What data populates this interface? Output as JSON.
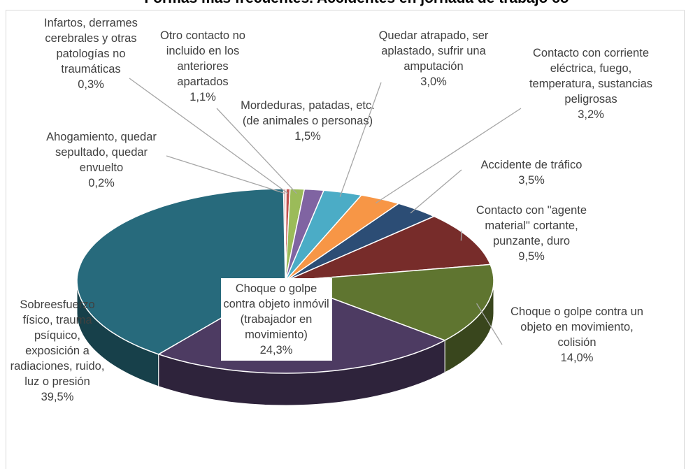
{
  "chart_data": {
    "type": "pie3d",
    "title": "Formas más frecuentes. Accidentes en jornada de trabajo co",
    "categories": [
      "Ahogamiento, quedar sepultado, quedar envuelto",
      "Infartos, derrames cerebrales y otras patologías no traumáticas",
      "Otro contacto no incluido en los anteriores apartados",
      "Mordeduras, patadas, etc. (de animales o personas)",
      "Quedar atrapado, ser aplastado, sufrir una amputación",
      "Contacto con corriente eléctrica, fuego, temperatura, sustancias peligrosas",
      "Accidente de tráfico",
      "Contacto con \"agente material\" cortante, punzante, duro",
      "Choque o golpe contra un objeto en movimiento, colisión",
      "Choque o golpe contra objeto inmóvil (trabajador en movimiento)",
      "Sobreesfuerzo físico, trauma psíquico, exposición a radiaciones, ruido, luz o presión"
    ],
    "values": [
      0.2,
      0.3,
      1.1,
      1.5,
      3.0,
      3.2,
      3.5,
      9.5,
      14.0,
      24.3,
      39.5
    ],
    "value_labels": [
      "0,2%",
      "0,3%",
      "1,1%",
      "1,5%",
      "3,0%",
      "3,2%",
      "3,5%",
      "9,5%",
      "14,0%",
      "24,3%",
      "39,5%"
    ],
    "colors": [
      "#e6a9a8",
      "#c0504d",
      "#9bbb59",
      "#8064a2",
      "#4bacc6",
      "#f79646",
      "#2c4d75",
      "#772c2a",
      "#5f7530",
      "#4d3b62",
      "#276a7c"
    ]
  }
}
